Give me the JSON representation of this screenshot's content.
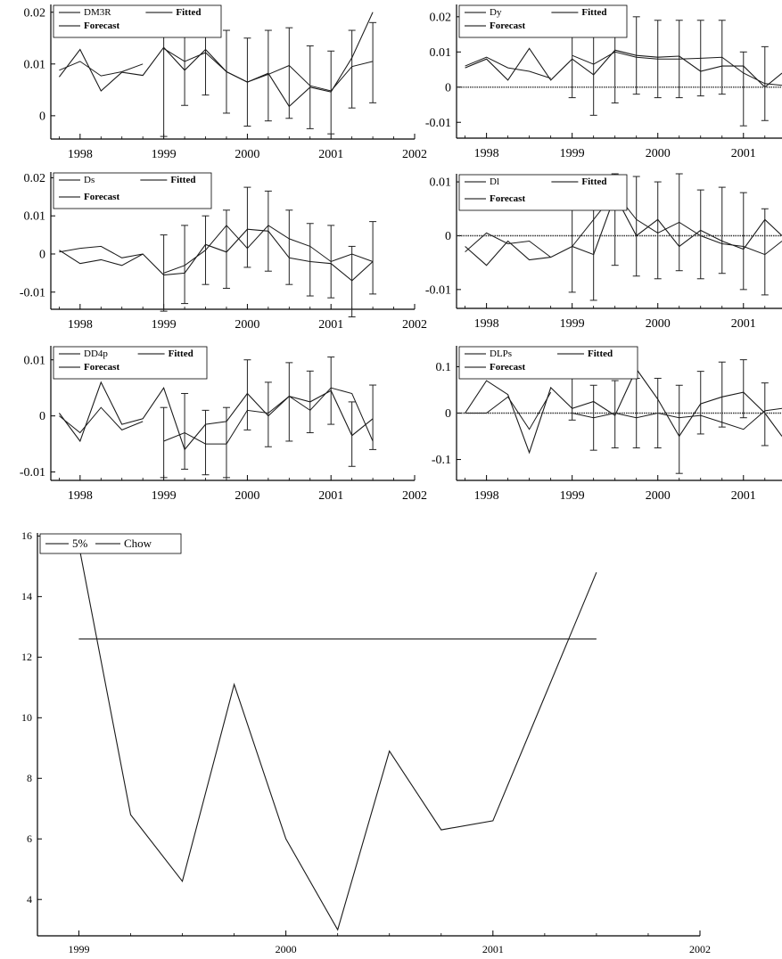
{
  "chart_data": [
    {
      "type": "line",
      "panel": "DM3R",
      "xticks": [
        "1998",
        "1999",
        "2000",
        "2001",
        "2002"
      ],
      "yticks": [
        {
          "v": 0,
          "label": "0"
        },
        {
          "v": 0.01,
          "label": "0.01"
        },
        {
          "v": 0.02,
          "label": "0.02"
        }
      ],
      "xlim": [
        1997.65,
        2002.0
      ],
      "ylim": [
        -0.0045,
        0.0215
      ],
      "legend": {
        "a": "DM3R",
        "b": "Fitted",
        "c": "Forecast"
      },
      "series": [
        {
          "name": "DM3R",
          "x": [
            1997.75,
            1998.0,
            1998.25,
            1998.5,
            1998.75,
            1999.0,
            1999.25,
            1999.5,
            1999.75,
            2000.0,
            2000.25,
            2000.5,
            2000.75,
            2001.0,
            2001.25,
            2001.5
          ],
          "values": [
            0.0075,
            0.0128,
            0.0048,
            0.0084,
            0.0078,
            0.0132,
            0.0088,
            0.0128,
            0.0085,
            0.0065,
            0.0082,
            0.0018,
            0.0055,
            0.0046,
            0.0112,
            0.02
          ]
        },
        {
          "name": "Fitted",
          "x": [
            1997.75,
            1998.0,
            1998.25,
            1998.5,
            1998.75
          ],
          "values": [
            0.0088,
            0.0105,
            0.0077,
            0.0085,
            0.01
          ]
        },
        {
          "name": "Forecast",
          "x": [
            1999.0,
            1999.25,
            1999.5,
            1999.75,
            2000.0,
            2000.25,
            2000.5,
            2000.75,
            2001.0,
            2001.25,
            2001.5
          ],
          "values": [
            0.013,
            0.0105,
            0.0122,
            0.0085,
            0.0065,
            0.008,
            0.0097,
            0.0058,
            0.0048,
            0.0095,
            0.0105
          ]
        }
      ],
      "errorbars": {
        "x": [
          1999.0,
          1999.25,
          1999.5,
          1999.75,
          2000.0,
          2000.25,
          2000.5,
          2000.75,
          2001.0,
          2001.25,
          2001.5
        ],
        "lo": [
          -0.004,
          0.002,
          0.004,
          0.0005,
          -0.002,
          -0.001,
          -0.0005,
          -0.0025,
          -0.0035,
          0.0015,
          0.0025
        ],
        "hi": [
          0.02,
          0.019,
          0.02,
          0.0165,
          0.015,
          0.0165,
          0.017,
          0.0135,
          0.0125,
          0.0165,
          0.018
        ]
      }
    },
    {
      "type": "line",
      "panel": "Dy",
      "xticks": [
        "1998",
        "1999",
        "2000",
        "2001"
      ],
      "yticks": [
        {
          "v": -0.01,
          "label": "-0.01"
        },
        {
          "v": 0,
          "label": "0"
        },
        {
          "v": 0.01,
          "label": "0.01"
        },
        {
          "v": 0.02,
          "label": "0.02"
        }
      ],
      "xlim": [
        1997.65,
        2001.45
      ],
      "ylim": [
        -0.0145,
        0.0235
      ],
      "legend": {
        "a": "Dy",
        "b": "Fitted",
        "c": "Forecast"
      },
      "series": [
        {
          "name": "Dy",
          "x": [
            1997.75,
            1998.0,
            1998.25,
            1998.5,
            1998.75,
            1999.0,
            1999.25,
            1999.5,
            1999.75,
            2000.0,
            2000.25,
            2000.5,
            2000.75,
            2001.0,
            2001.25,
            2001.45
          ],
          "values": [
            0.0055,
            0.008,
            0.002,
            0.011,
            0.002,
            0.008,
            0.0035,
            0.0105,
            0.009,
            0.0085,
            0.0088,
            0.0045,
            0.006,
            0.006,
            0.0,
            0.004
          ]
        },
        {
          "name": "Fitted",
          "x": [
            1997.75,
            1998.0,
            1998.25,
            1998.5,
            1998.75
          ],
          "values": [
            0.006,
            0.0085,
            0.0055,
            0.0045,
            0.0025
          ]
        },
        {
          "name": "Forecast",
          "x": [
            1999.0,
            1999.25,
            1999.5,
            1999.75,
            2000.0,
            2000.25,
            2000.5,
            2000.75,
            2001.0,
            2001.25,
            2001.45
          ],
          "values": [
            0.009,
            0.0065,
            0.01,
            0.0085,
            0.008,
            0.008,
            0.0082,
            0.0085,
            0.004,
            0.001,
            0.0005
          ]
        },
        {
          "name": "Zero",
          "x": [
            1997.65,
            2001.45
          ],
          "values": [
            0,
            0
          ]
        }
      ],
      "errorbars": {
        "x": [
          1999.0,
          1999.25,
          1999.5,
          1999.75,
          2000.0,
          2000.25,
          2000.5,
          2000.75,
          2001.0,
          2001.25
        ],
        "lo": [
          -0.003,
          -0.008,
          -0.0045,
          -0.002,
          -0.003,
          -0.003,
          -0.0025,
          -0.002,
          -0.011,
          -0.0095
        ],
        "hi": [
          0.019,
          0.015,
          0.02,
          0.02,
          0.019,
          0.019,
          0.019,
          0.019,
          0.01,
          0.0115
        ]
      }
    },
    {
      "type": "line",
      "panel": "Ds",
      "xticks": [
        "1998",
        "1999",
        "2000",
        "2001",
        "2002"
      ],
      "yticks": [
        {
          "v": -0.01,
          "label": "-0.01"
        },
        {
          "v": 0,
          "label": "0"
        },
        {
          "v": 0.01,
          "label": "0.01"
        },
        {
          "v": 0.02,
          "label": "0.02"
        }
      ],
      "xlim": [
        1997.65,
        2002.0
      ],
      "ylim": [
        -0.0145,
        0.0215
      ],
      "legend": {
        "a": "Ds",
        "b": "Fitted",
        "c": "Forecast"
      },
      "series": [
        {
          "name": "Ds",
          "x": [
            1997.75,
            1998.0,
            1998.25,
            1998.5,
            1998.75,
            1999.0,
            1999.25,
            1999.5,
            1999.75,
            2000.0,
            2000.25,
            2000.5,
            2000.75,
            2001.0,
            2001.25,
            2001.5
          ],
          "values": [
            0.001,
            -0.0025,
            -0.0015,
            -0.003,
            0.0,
            -0.0055,
            -0.005,
            0.0025,
            0.0005,
            0.0065,
            0.006,
            -0.001,
            -0.002,
            -0.0025,
            -0.007,
            -0.002
          ]
        },
        {
          "name": "Fitted",
          "x": [
            1997.75,
            1998.0,
            1998.25,
            1998.5,
            1998.75
          ],
          "values": [
            0.0005,
            0.0015,
            0.002,
            -0.001,
            0.0
          ]
        },
        {
          "name": "Forecast",
          "x": [
            1999.0,
            1999.25,
            1999.5,
            1999.75,
            2000.0,
            2000.25,
            2000.5,
            2000.75,
            2001.0,
            2001.25,
            2001.5
          ],
          "values": [
            -0.005,
            -0.003,
            0.001,
            0.0075,
            0.0015,
            0.0075,
            0.004,
            0.002,
            -0.002,
            0.0,
            -0.002
          ]
        }
      ],
      "errorbars": {
        "x": [
          1999.0,
          1999.25,
          1999.5,
          1999.75,
          2000.0,
          2000.25,
          2000.5,
          2000.75,
          2001.0,
          2001.25,
          2001.5
        ],
        "lo": [
          -0.015,
          -0.013,
          -0.008,
          -0.009,
          -0.0035,
          -0.0045,
          -0.008,
          -0.011,
          -0.0115,
          -0.0165,
          -0.0105
        ],
        "hi": [
          0.005,
          0.0075,
          0.01,
          0.0115,
          0.0175,
          0.0165,
          0.0115,
          0.008,
          0.0075,
          0.002,
          0.0085
        ]
      }
    },
    {
      "type": "line",
      "panel": "Dl",
      "xticks": [
        "1998",
        "1999",
        "2000",
        "2001"
      ],
      "yticks": [
        {
          "v": -0.01,
          "label": "-0.01"
        },
        {
          "v": 0,
          "label": "0"
        },
        {
          "v": 0.01,
          "label": "0.01"
        }
      ],
      "xlim": [
        1997.65,
        2001.45
      ],
      "ylim": [
        -0.0135,
        0.0115
      ],
      "legend": {
        "a": "Dl",
        "b": "Fitted",
        "c": "Forecast"
      },
      "series": [
        {
          "name": "Dl",
          "x": [
            1997.75,
            1998.0,
            1998.25,
            1998.5,
            1998.75,
            1999.0,
            1999.25,
            1999.5,
            1999.75,
            2000.0,
            2000.25,
            2000.5,
            2000.75,
            2001.0,
            2001.25,
            2001.45
          ],
          "values": [
            -0.002,
            -0.0055,
            -0.001,
            -0.0045,
            -0.004,
            -0.002,
            -0.0035,
            0.0075,
            0.0,
            0.003,
            -0.002,
            0.001,
            -0.001,
            -0.0025,
            0.003,
            0.0
          ]
        },
        {
          "name": "Fitted",
          "x": [
            1997.75,
            1998.0,
            1998.25,
            1998.5,
            1998.75
          ],
          "values": [
            -0.003,
            0.0005,
            -0.0015,
            -0.001,
            -0.004
          ]
        },
        {
          "name": "Forecast",
          "x": [
            1999.0,
            1999.25,
            1999.5,
            1999.75,
            2000.0,
            2000.25,
            2000.5,
            2000.75,
            2001.0,
            2001.25,
            2001.45
          ],
          "values": [
            -0.002,
            0.003,
            0.008,
            0.003,
            0.0005,
            0.0025,
            0.0,
            -0.0015,
            -0.002,
            -0.0035,
            -0.001
          ]
        },
        {
          "name": "Zero",
          "x": [
            1997.65,
            2001.45
          ],
          "values": [
            0,
            0
          ]
        }
      ],
      "errorbars": {
        "x": [
          1999.0,
          1999.25,
          1999.5,
          1999.75,
          2000.0,
          2000.25,
          2000.5,
          2000.75,
          2001.0,
          2001.25
        ],
        "lo": [
          -0.0105,
          -0.012,
          -0.0055,
          -0.0075,
          -0.008,
          -0.0065,
          -0.008,
          -0.007,
          -0.01,
          -0.011
        ],
        "hi": [
          0.0065,
          0.01,
          0.0115,
          0.011,
          0.01,
          0.0115,
          0.0085,
          0.009,
          0.008,
          0.005
        ]
      }
    },
    {
      "type": "line",
      "panel": "DD4p",
      "xticks": [
        "1998",
        "1999",
        "2000",
        "2001",
        "2002"
      ],
      "yticks": [
        {
          "v": -0.01,
          "label": "-0.01"
        },
        {
          "v": 0,
          "label": "0"
        },
        {
          "v": 0.01,
          "label": "0.01"
        }
      ],
      "xlim": [
        1997.65,
        2002.0
      ],
      "ylim": [
        -0.0115,
        0.0125
      ],
      "legend": {
        "a": "DD4p",
        "b": "Fitted",
        "c": "Forecast"
      },
      "series": [
        {
          "name": "DD4p",
          "x": [
            1997.75,
            1998.0,
            1998.25,
            1998.5,
            1998.75,
            1999.0,
            1999.25,
            1999.5,
            1999.75,
            2000.0,
            2000.25,
            2000.5,
            2000.75,
            2001.0,
            2001.25,
            2001.5
          ],
          "values": [
            0.0005,
            -0.0045,
            0.006,
            -0.0015,
            -0.0005,
            0.005,
            -0.006,
            -0.0015,
            -0.001,
            0.004,
            0.0,
            0.0035,
            0.0025,
            0.0045,
            -0.0035,
            -0.0005
          ]
        },
        {
          "name": "Fitted",
          "x": [
            1997.75,
            1998.0,
            1998.25,
            1998.5,
            1998.75
          ],
          "values": [
            0.0,
            -0.003,
            0.0015,
            -0.0025,
            -0.001
          ]
        },
        {
          "name": "Forecast",
          "x": [
            1999.0,
            1999.25,
            1999.5,
            1999.75,
            2000.0,
            2000.25,
            2000.5,
            2000.75,
            2001.0,
            2001.25,
            2001.5
          ],
          "values": [
            -0.0045,
            -0.003,
            -0.005,
            -0.005,
            0.001,
            0.0005,
            0.0035,
            0.001,
            0.005,
            0.004,
            -0.0045
          ]
        }
      ],
      "errorbars": {
        "x": [
          1999.0,
          1999.25,
          1999.5,
          1999.75,
          2000.0,
          2000.25,
          2000.5,
          2000.75,
          2001.0,
          2001.25,
          2001.5
        ],
        "lo": [
          -0.011,
          -0.0095,
          -0.0105,
          -0.011,
          -0.0025,
          -0.0055,
          -0.0045,
          -0.003,
          -0.0015,
          -0.009,
          -0.006
        ],
        "hi": [
          0.0015,
          0.004,
          0.001,
          0.0015,
          0.01,
          0.006,
          0.0095,
          0.008,
          0.0105,
          0.0025,
          0.0055
        ]
      }
    },
    {
      "type": "line",
      "panel": "DLPs",
      "xticks": [
        "1998",
        "1999",
        "2000",
        "2001"
      ],
      "yticks": [
        {
          "v": -0.1,
          "label": "-0.1"
        },
        {
          "v": 0,
          "label": "0"
        },
        {
          "v": 0.1,
          "label": "0.1"
        }
      ],
      "xlim": [
        1997.65,
        2001.45
      ],
      "ylim": [
        -0.145,
        0.145
      ],
      "legend": {
        "a": "DLPs",
        "b": "Fitted",
        "c": "Forecast"
      },
      "series": [
        {
          "name": "DLPs",
          "x": [
            1997.75,
            1998.0,
            1998.25,
            1998.5,
            1998.75,
            1999.0,
            1999.25,
            1999.5,
            1999.75,
            2000.0,
            2000.25,
            2000.5,
            2000.75,
            2001.0,
            2001.25,
            2001.45
          ],
          "values": [
            0.0,
            0.07,
            0.04,
            -0.085,
            0.055,
            0.01,
            0.025,
            -0.005,
            0.095,
            0.03,
            -0.05,
            0.02,
            0.035,
            0.045,
            0.0,
            -0.05
          ]
        },
        {
          "name": "Fitted",
          "x": [
            1997.75,
            1998.0,
            1998.25,
            1998.5,
            1998.75
          ],
          "values": [
            0.0,
            0.0,
            0.035,
            -0.035,
            0.045
          ]
        },
        {
          "name": "Forecast",
          "x": [
            1999.0,
            1999.25,
            1999.5,
            1999.75,
            2000.0,
            2000.25,
            2000.5,
            2000.75,
            2001.0,
            2001.25,
            2001.45
          ],
          "values": [
            0.0,
            -0.01,
            0.0,
            -0.01,
            0.0,
            -0.01,
            -0.005,
            -0.02,
            -0.035,
            0.005,
            0.01
          ]
        },
        {
          "name": "Zero",
          "x": [
            1997.65,
            2001.45
          ],
          "values": [
            0,
            0
          ]
        }
      ],
      "errorbars": {
        "x": [
          1999.0,
          1999.25,
          1999.5,
          1999.75,
          2000.0,
          2000.25,
          2000.5,
          2000.75,
          2001.0,
          2001.25
        ],
        "lo": [
          -0.015,
          -0.08,
          -0.075,
          -0.075,
          -0.075,
          -0.13,
          -0.045,
          -0.03,
          -0.01,
          -0.07
        ],
        "hi": [
          0.13,
          0.06,
          0.07,
          0.075,
          0.075,
          0.06,
          0.09,
          0.11,
          0.115,
          0.065
        ]
      }
    },
    {
      "type": "line",
      "panel": "Chow",
      "xticks": [
        "1999",
        "2000",
        "2001",
        "2002"
      ],
      "yticks": [
        {
          "v": 4,
          "label": "4"
        },
        {
          "v": 6,
          "label": "6"
        },
        {
          "v": 8,
          "label": "8"
        },
        {
          "v": 10,
          "label": "10"
        },
        {
          "v": 12,
          "label": "12"
        },
        {
          "v": 14,
          "label": "14"
        },
        {
          "v": 16,
          "label": "16"
        }
      ],
      "xlim": [
        1998.8,
        2002.0
      ],
      "ylim": [
        2.8,
        16.1
      ],
      "legend": {
        "a": "5%",
        "b": "Chow"
      },
      "series": [
        {
          "name": "Chow",
          "x": [
            1999.0,
            1999.25,
            1999.5,
            1999.75,
            2000.0,
            2000.25,
            2000.5,
            2000.75,
            2001.0,
            2001.25,
            2001.5
          ],
          "values": [
            15.7,
            6.8,
            4.6,
            11.1,
            6.0,
            3.0,
            8.9,
            6.3,
            6.6,
            10.7,
            14.8
          ]
        },
        {
          "name": "5%",
          "x": [
            1999.0,
            2001.5
          ],
          "values": [
            12.6,
            12.6
          ]
        }
      ]
    }
  ]
}
